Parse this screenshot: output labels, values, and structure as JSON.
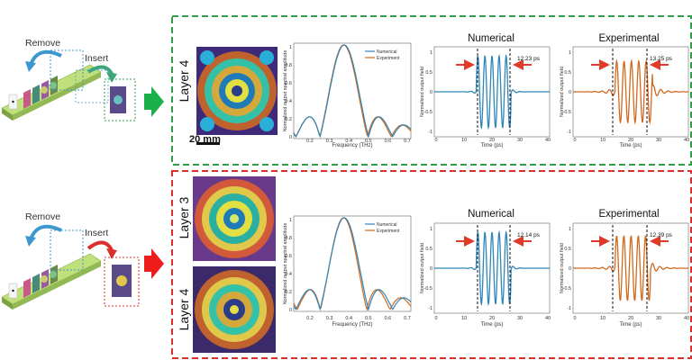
{
  "colors": {
    "green_box": "#2e9e48",
    "red_box": "#d9302c",
    "numerical": "#2f86b8",
    "experimental": "#d2691e",
    "curve_red": "#e03a2a",
    "blue_arrow": "#3d97d0",
    "rail": "#a9cf62"
  },
  "top": {
    "remove_label": "Remove",
    "insert_label": "Insert",
    "scale_label": "20 mm",
    "layers": [
      {
        "label": "Layer 4"
      }
    ],
    "spectrum": {
      "ylabel": "Normalized output spectral amplitude",
      "xlabel": "Frequency (THz)",
      "xticks": [
        "0.2",
        "0.3",
        "0.4",
        "0.5",
        "0.6",
        "0.7"
      ],
      "yticks": [
        "0",
        "0.2",
        "0.4",
        "0.6",
        "0.8",
        "1"
      ],
      "legend": [
        "Numerical",
        "Experiment"
      ]
    },
    "numerical": {
      "title": "Numerical",
      "ylabel": "Normalized output field",
      "xlabel": "Time (ps)",
      "xticks": [
        "0",
        "10",
        "20",
        "30",
        "40"
      ],
      "yticks": [
        "-1",
        "-0.5",
        "0",
        "0.5",
        "1"
      ],
      "width_label": "12.23 ps"
    },
    "experimental": {
      "title": "Experimental",
      "ylabel": "Normalized output field",
      "xlabel": "Time (ps)",
      "xticks": [
        "0",
        "10",
        "20",
        "30",
        "40"
      ],
      "yticks": [
        "-1",
        "-0.5",
        "0",
        "0.5",
        "1"
      ],
      "width_label": "13.25 ps"
    }
  },
  "bottom": {
    "remove_label": "Remove",
    "insert_label": "Insert",
    "layers": [
      {
        "label": "Layer 3"
      },
      {
        "label": "Layer 4"
      }
    ],
    "spectrum": {
      "ylabel": "Normalized output spectral amplitude",
      "xlabel": "Frequency (THz)",
      "xticks": [
        "0.2",
        "0.3",
        "0.4",
        "0.5",
        "0.6",
        "0.7"
      ],
      "yticks": [
        "0",
        "0.2",
        "0.4",
        "0.6",
        "0.8",
        "1"
      ],
      "legend": [
        "Numerical",
        "Experiment"
      ]
    },
    "numerical": {
      "title": "Numerical",
      "ylabel": "Normalized output field",
      "xlabel": "Time (ps)",
      "xticks": [
        "0",
        "10",
        "20",
        "30",
        "40"
      ],
      "yticks": [
        "-1",
        "-0.5",
        "0",
        "0.5",
        "1"
      ],
      "width_label": "12.14 ps"
    },
    "experimental": {
      "title": "Experimental",
      "ylabel": "Normalized output field",
      "xlabel": "Time (ps)",
      "xticks": [
        "0",
        "10",
        "20",
        "30",
        "40"
      ],
      "yticks": [
        "-1",
        "-0.5",
        "0",
        "0.5",
        "1"
      ],
      "width_label": "12.39 ps"
    }
  }
}
